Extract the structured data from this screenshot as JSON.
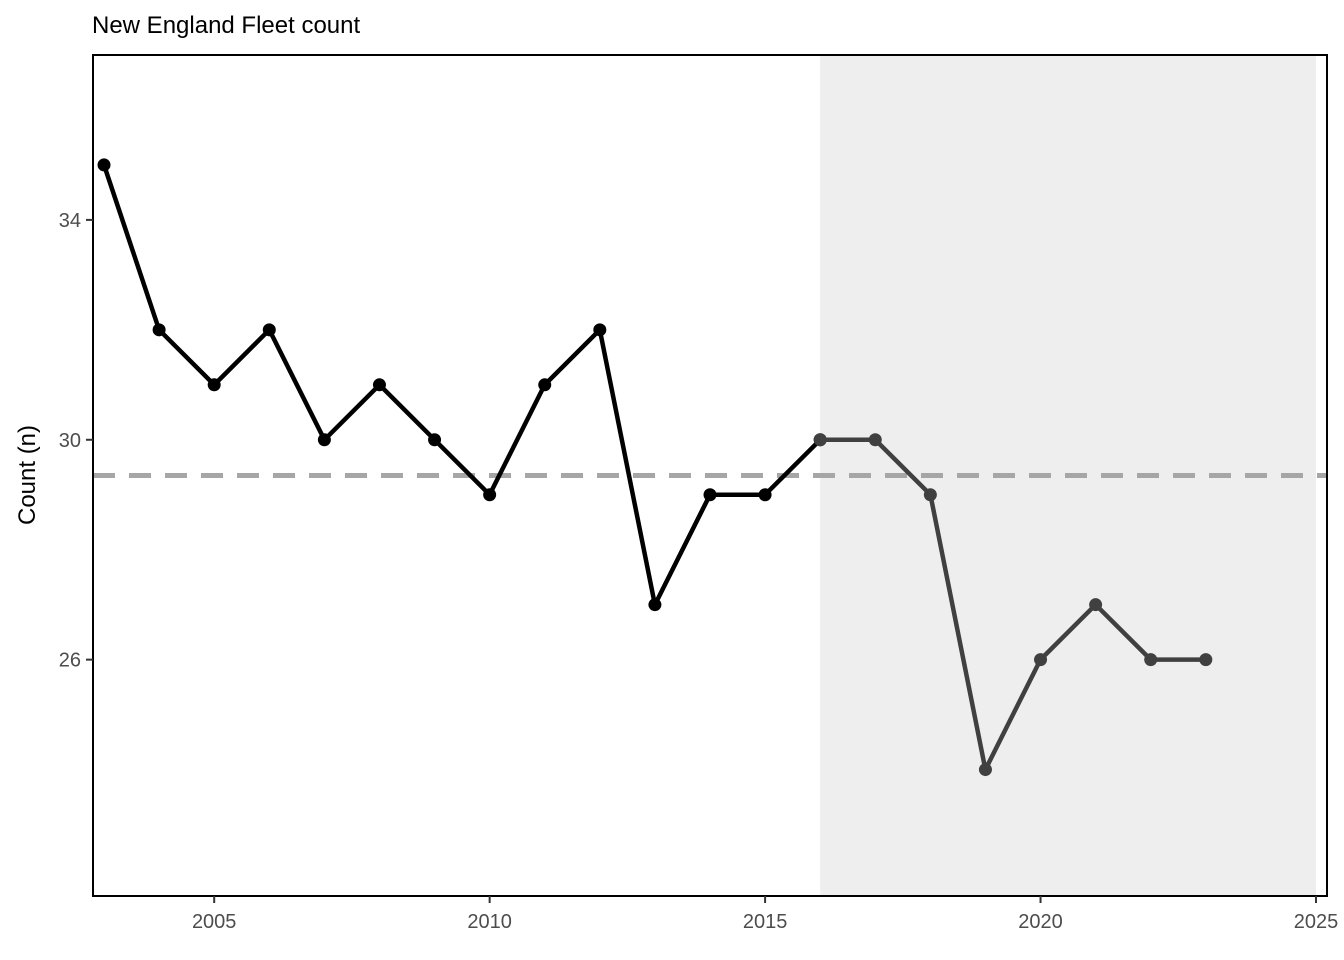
{
  "chart_data": {
    "type": "line",
    "title": "New England Fleet count",
    "xlabel": "",
    "ylabel": "Count (n)",
    "xlim": [
      2002.8,
      2025.2
    ],
    "ylim": [
      21.7,
      37.0
    ],
    "x_ticks": [
      2005,
      2010,
      2015,
      2020,
      2025
    ],
    "y_ticks": [
      26,
      30,
      34
    ],
    "grid": false,
    "shaded_region": {
      "x_start": 2016,
      "x_end": 2025,
      "color": "#eeeeee"
    },
    "reference_line": {
      "y": 29.35,
      "style": "dashed",
      "color": "#a6a6a6"
    },
    "series": [
      {
        "color": "#000000",
        "x": [
          2003,
          2004,
          2005,
          2006,
          2007,
          2008,
          2009,
          2010,
          2011,
          2012,
          2013,
          2014,
          2015,
          2016
        ],
        "values": [
          35,
          32,
          31,
          32,
          30,
          31,
          30,
          29,
          31,
          32,
          27,
          29,
          29,
          30
        ]
      },
      {
        "color": "#404040",
        "x": [
          2016,
          2017,
          2018,
          2019,
          2020,
          2021,
          2022,
          2023
        ],
        "values": [
          30,
          30,
          29,
          24,
          26,
          27,
          26,
          26
        ]
      }
    ]
  }
}
